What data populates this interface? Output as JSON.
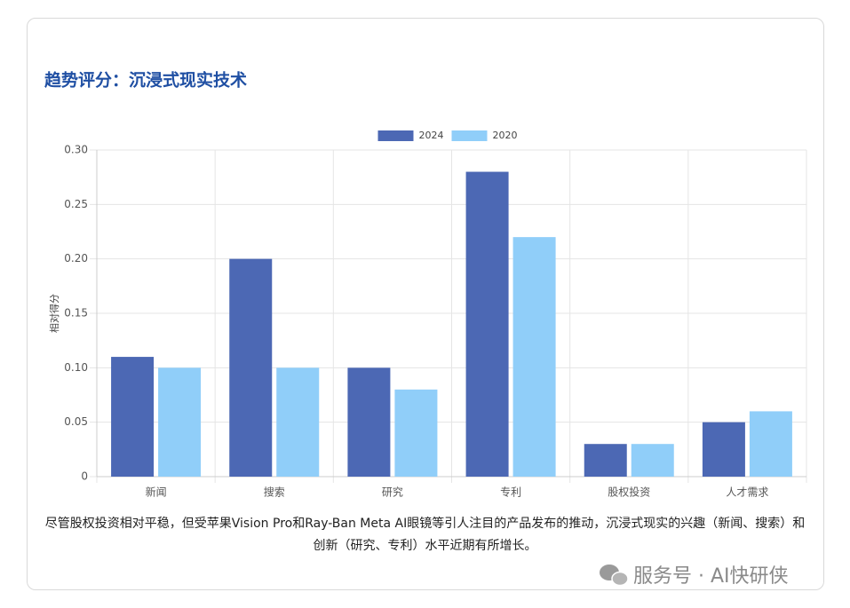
{
  "chart_data": {
    "type": "bar",
    "title": "趋势评分：沉浸式现实技术",
    "y_label": "相对得分",
    "categories": [
      "新闻",
      "搜索",
      "研究",
      "专利",
      "股权投资",
      "人才需求"
    ],
    "series": [
      {
        "name": "2024",
        "color": "#4c68b4",
        "values": [
          0.11,
          0.2,
          0.1,
          0.28,
          0.03,
          0.05
        ]
      },
      {
        "name": "2020",
        "color": "#90cef9",
        "values": [
          0.1,
          0.1,
          0.08,
          0.22,
          0.03,
          0.06
        ]
      }
    ],
    "ylim": [
      0,
      0.3
    ],
    "yticks": [
      0,
      0.05,
      {
        "value": 0.1,
        "label": "0.10"
      },
      0.15,
      {
        "value": 0.2,
        "label": "0.20"
      },
      0.25,
      {
        "value": 0.3,
        "label": "0.30"
      }
    ],
    "grid": true,
    "legend": "top"
  },
  "caption": "尽管股权投资相对平稳，但受苹果Vision Pro和Ray-Ban Meta AI眼镜等引人注目的产品发布的推动，沉浸式现实的兴趣（新闻、搜索）和创新（研究、专利）水平近期有所增长。",
  "watermark": "服务号 · AI快研侠"
}
